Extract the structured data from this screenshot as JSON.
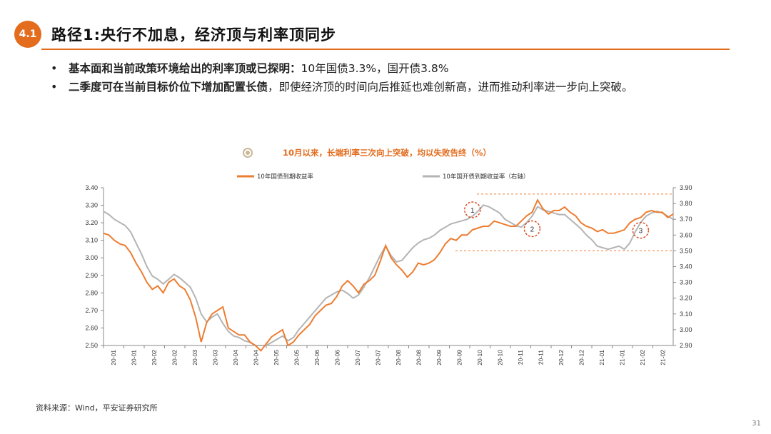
{
  "header": {
    "badge": "4.1",
    "title": "路径1:央行不加息，经济顶与利率顶同步"
  },
  "bullets": [
    {
      "bold": "基本面和当前政策环境给出的利率顶或已探明：",
      "text": "10年国债3.3%，国开债3.8%"
    },
    {
      "bold": "二季度可在当前目标价位下增加配置长债",
      "text": "，即使经济顶的时间向后推延也难创新高，进而推动利率进一步向上突破。"
    }
  ],
  "chart_title": "10月以来，长端利率三次向上突破，均以失败告终（%）",
  "source": "资料来源：Wind，平安证券研究所",
  "page_number": "31",
  "colors": {
    "accent": "#e36c1d",
    "series1": "#ed7d31",
    "series2": "#b4b4b4",
    "ring": "#c9b899"
  },
  "chart_data": {
    "type": "line",
    "series": [
      {
        "name": "10年国债到期收益率",
        "axis": "left",
        "values": [
          3.14,
          3.13,
          3.1,
          3.08,
          3.07,
          3.03,
          2.97,
          2.92,
          2.86,
          2.82,
          2.84,
          2.8,
          2.86,
          2.88,
          2.84,
          2.82,
          2.76,
          2.66,
          2.52,
          2.63,
          2.68,
          2.7,
          2.72,
          2.6,
          2.58,
          2.56,
          2.56,
          2.52,
          2.5,
          2.47,
          2.51,
          2.55,
          2.57,
          2.59,
          2.5,
          2.52,
          2.56,
          2.59,
          2.62,
          2.67,
          2.7,
          2.73,
          2.74,
          2.78,
          2.84,
          2.87,
          2.84,
          2.8,
          2.85,
          2.87,
          2.9,
          2.98,
          3.07,
          3.0,
          2.96,
          2.93,
          2.89,
          2.92,
          2.97,
          2.96,
          2.97,
          2.99,
          3.03,
          3.08,
          3.11,
          3.1,
          3.13,
          3.13,
          3.16,
          3.17,
          3.18,
          3.18,
          3.21,
          3.2,
          3.19,
          3.18,
          3.18,
          3.21,
          3.24,
          3.26,
          3.33,
          3.28,
          3.25,
          3.27,
          3.27,
          3.29,
          3.26,
          3.24,
          3.2,
          3.18,
          3.17,
          3.15,
          3.16,
          3.14,
          3.14,
          3.15,
          3.16,
          3.2,
          3.22,
          3.23,
          3.26,
          3.27,
          3.26,
          3.26,
          3.23,
          3.25
        ]
      },
      {
        "name": "10年国开债到期收益率（右轴）",
        "axis": "right",
        "values": [
          3.75,
          3.73,
          3.7,
          3.68,
          3.66,
          3.62,
          3.55,
          3.48,
          3.4,
          3.34,
          3.32,
          3.29,
          3.32,
          3.35,
          3.33,
          3.3,
          3.27,
          3.2,
          3.1,
          3.05,
          3.08,
          3.1,
          3.04,
          2.99,
          2.96,
          2.95,
          2.93,
          2.92,
          2.9,
          2.9,
          2.9,
          2.92,
          2.94,
          2.96,
          2.93,
          2.95,
          3.0,
          3.04,
          3.08,
          3.12,
          3.16,
          3.2,
          3.22,
          3.24,
          3.25,
          3.23,
          3.2,
          3.22,
          3.27,
          3.33,
          3.4,
          3.47,
          3.53,
          3.47,
          3.43,
          3.44,
          3.48,
          3.52,
          3.55,
          3.57,
          3.58,
          3.6,
          3.63,
          3.65,
          3.67,
          3.68,
          3.69,
          3.7,
          3.72,
          3.75,
          3.79,
          3.78,
          3.76,
          3.74,
          3.7,
          3.68,
          3.66,
          3.65,
          3.68,
          3.72,
          3.78,
          3.76,
          3.75,
          3.74,
          3.73,
          3.73,
          3.7,
          3.67,
          3.64,
          3.6,
          3.57,
          3.53,
          3.52,
          3.51,
          3.52,
          3.53,
          3.51,
          3.55,
          3.62,
          3.68,
          3.72,
          3.74,
          3.75,
          3.74,
          3.72,
          3.7
        ]
      }
    ],
    "x_labels": [
      "20-01",
      "20-01",
      "20-02",
      "20-02",
      "20-03",
      "20-03",
      "20-04",
      "20-04",
      "20-05",
      "20-05",
      "20-06",
      "20-06",
      "20-07",
      "20-07",
      "20-08",
      "20-08",
      "20-09",
      "20-09",
      "20-10",
      "20-10",
      "20-11",
      "20-11",
      "20-12",
      "20-12",
      "21-01",
      "21-01",
      "21-02",
      "21-02"
    ],
    "y_left": {
      "min": 2.5,
      "max": 3.4,
      "step": 0.1,
      "ticks": [
        "2.50",
        "2.60",
        "2.70",
        "2.80",
        "2.90",
        "3.00",
        "3.10",
        "3.20",
        "3.30",
        "3.40"
      ]
    },
    "y_right": {
      "min": 2.9,
      "max": 3.9,
      "step": 0.1,
      "ticks": [
        "2.90",
        "3.00",
        "3.10",
        "3.20",
        "3.30",
        "3.40",
        "3.50",
        "3.60",
        "3.70",
        "3.80",
        "3.90"
      ]
    },
    "reference_lines_right_axis": [
      3.86,
      3.5
    ],
    "annotations": [
      {
        "label": "1",
        "index": 68,
        "right_value": 3.76
      },
      {
        "label": "2",
        "index": 79,
        "right_value": 3.64
      },
      {
        "label": "3",
        "index": 99,
        "right_value": 3.63
      }
    ],
    "legend_position": "top",
    "grid": false
  }
}
